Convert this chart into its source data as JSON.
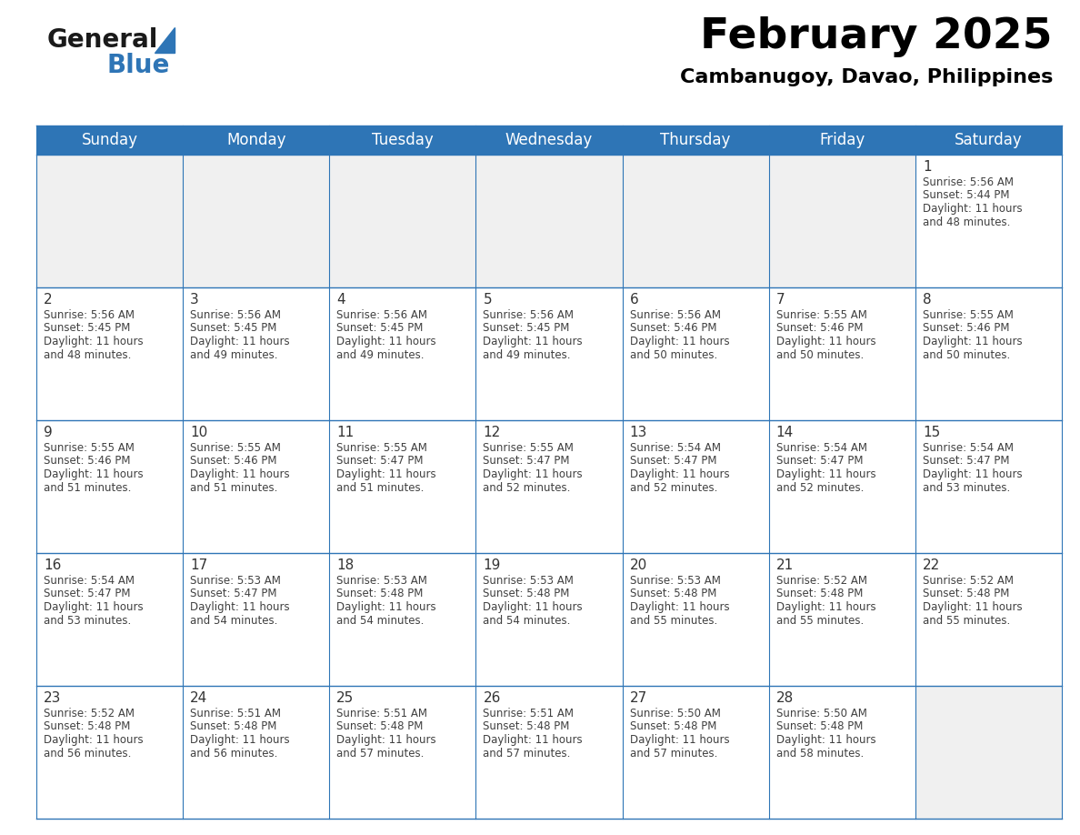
{
  "title": "February 2025",
  "subtitle": "Cambanugoy, Davao, Philippines",
  "header_bg_color": "#2E75B6",
  "header_text_color": "#FFFFFF",
  "cell_bg_color": "#FFFFFF",
  "alt_cell_bg_color": "#F0F0F0",
  "border_color": "#2E75B6",
  "title_color": "#000000",
  "subtitle_color": "#000000",
  "day_number_color": "#333333",
  "cell_text_color": "#404040",
  "days_of_week": [
    "Sunday",
    "Monday",
    "Tuesday",
    "Wednesday",
    "Thursday",
    "Friday",
    "Saturday"
  ],
  "calendar_data": [
    [
      null,
      null,
      null,
      null,
      null,
      null,
      {
        "day": 1,
        "sunrise": "5:56 AM",
        "sunset": "5:44 PM",
        "daylight_hours": 11,
        "daylight_minutes": 48
      }
    ],
    [
      {
        "day": 2,
        "sunrise": "5:56 AM",
        "sunset": "5:45 PM",
        "daylight_hours": 11,
        "daylight_minutes": 48
      },
      {
        "day": 3,
        "sunrise": "5:56 AM",
        "sunset": "5:45 PM",
        "daylight_hours": 11,
        "daylight_minutes": 49
      },
      {
        "day": 4,
        "sunrise": "5:56 AM",
        "sunset": "5:45 PM",
        "daylight_hours": 11,
        "daylight_minutes": 49
      },
      {
        "day": 5,
        "sunrise": "5:56 AM",
        "sunset": "5:45 PM",
        "daylight_hours": 11,
        "daylight_minutes": 49
      },
      {
        "day": 6,
        "sunrise": "5:56 AM",
        "sunset": "5:46 PM",
        "daylight_hours": 11,
        "daylight_minutes": 50
      },
      {
        "day": 7,
        "sunrise": "5:55 AM",
        "sunset": "5:46 PM",
        "daylight_hours": 11,
        "daylight_minutes": 50
      },
      {
        "day": 8,
        "sunrise": "5:55 AM",
        "sunset": "5:46 PM",
        "daylight_hours": 11,
        "daylight_minutes": 50
      }
    ],
    [
      {
        "day": 9,
        "sunrise": "5:55 AM",
        "sunset": "5:46 PM",
        "daylight_hours": 11,
        "daylight_minutes": 51
      },
      {
        "day": 10,
        "sunrise": "5:55 AM",
        "sunset": "5:46 PM",
        "daylight_hours": 11,
        "daylight_minutes": 51
      },
      {
        "day": 11,
        "sunrise": "5:55 AM",
        "sunset": "5:47 PM",
        "daylight_hours": 11,
        "daylight_minutes": 51
      },
      {
        "day": 12,
        "sunrise": "5:55 AM",
        "sunset": "5:47 PM",
        "daylight_hours": 11,
        "daylight_minutes": 52
      },
      {
        "day": 13,
        "sunrise": "5:54 AM",
        "sunset": "5:47 PM",
        "daylight_hours": 11,
        "daylight_minutes": 52
      },
      {
        "day": 14,
        "sunrise": "5:54 AM",
        "sunset": "5:47 PM",
        "daylight_hours": 11,
        "daylight_minutes": 52
      },
      {
        "day": 15,
        "sunrise": "5:54 AM",
        "sunset": "5:47 PM",
        "daylight_hours": 11,
        "daylight_minutes": 53
      }
    ],
    [
      {
        "day": 16,
        "sunrise": "5:54 AM",
        "sunset": "5:47 PM",
        "daylight_hours": 11,
        "daylight_minutes": 53
      },
      {
        "day": 17,
        "sunrise": "5:53 AM",
        "sunset": "5:47 PM",
        "daylight_hours": 11,
        "daylight_minutes": 54
      },
      {
        "day": 18,
        "sunrise": "5:53 AM",
        "sunset": "5:48 PM",
        "daylight_hours": 11,
        "daylight_minutes": 54
      },
      {
        "day": 19,
        "sunrise": "5:53 AM",
        "sunset": "5:48 PM",
        "daylight_hours": 11,
        "daylight_minutes": 54
      },
      {
        "day": 20,
        "sunrise": "5:53 AM",
        "sunset": "5:48 PM",
        "daylight_hours": 11,
        "daylight_minutes": 55
      },
      {
        "day": 21,
        "sunrise": "5:52 AM",
        "sunset": "5:48 PM",
        "daylight_hours": 11,
        "daylight_minutes": 55
      },
      {
        "day": 22,
        "sunrise": "5:52 AM",
        "sunset": "5:48 PM",
        "daylight_hours": 11,
        "daylight_minutes": 55
      }
    ],
    [
      {
        "day": 23,
        "sunrise": "5:52 AM",
        "sunset": "5:48 PM",
        "daylight_hours": 11,
        "daylight_minutes": 56
      },
      {
        "day": 24,
        "sunrise": "5:51 AM",
        "sunset": "5:48 PM",
        "daylight_hours": 11,
        "daylight_minutes": 56
      },
      {
        "day": 25,
        "sunrise": "5:51 AM",
        "sunset": "5:48 PM",
        "daylight_hours": 11,
        "daylight_minutes": 57
      },
      {
        "day": 26,
        "sunrise": "5:51 AM",
        "sunset": "5:48 PM",
        "daylight_hours": 11,
        "daylight_minutes": 57
      },
      {
        "day": 27,
        "sunrise": "5:50 AM",
        "sunset": "5:48 PM",
        "daylight_hours": 11,
        "daylight_minutes": 57
      },
      {
        "day": 28,
        "sunrise": "5:50 AM",
        "sunset": "5:48 PM",
        "daylight_hours": 11,
        "daylight_minutes": 58
      },
      null
    ]
  ],
  "logo_text_general": "General",
  "logo_text_blue": "Blue",
  "logo_color_general": "#1a1a1a",
  "logo_color_blue": "#2E75B6",
  "logo_triangle_color": "#2E75B6",
  "title_fontsize": 34,
  "subtitle_fontsize": 16,
  "header_fontsize": 12,
  "day_num_fontsize": 11,
  "cell_fontsize": 8.5
}
